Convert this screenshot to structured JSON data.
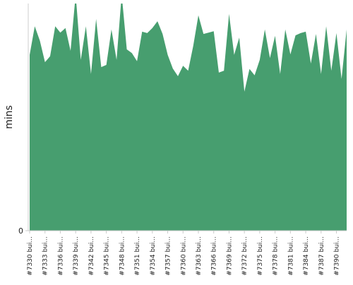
{
  "chart_data": {
    "type": "area",
    "y_label": "mins",
    "color": "#479e6f",
    "categories": [
      "#7330 bui...",
      null,
      null,
      "#7333 bui...",
      null,
      null,
      "#7336 bui...",
      null,
      null,
      "#7339 bui...",
      null,
      null,
      "#7342 bui...",
      null,
      null,
      "#7345 bui...",
      null,
      null,
      "#7348 bui...",
      null,
      null,
      "#7351 bui...",
      null,
      null,
      "#7354 bui...",
      null,
      null,
      "#7357 bui...",
      null,
      null,
      "#7360 bui...",
      null,
      null,
      "#7363 bui...",
      null,
      null,
      "#7366 bui...",
      null,
      null,
      "#7369 bui...",
      null,
      null,
      "#7372 bui...",
      null,
      null,
      "#7375 bui...",
      null,
      null,
      "#7378 bui...",
      null,
      null,
      "#7381 bui...",
      null,
      null,
      "#7384 bui...",
      null,
      null,
      "#7387 bui...",
      null,
      null,
      "#7390 bui...",
      null,
      null
    ],
    "values": [
      38.7,
      45.0,
      41.8,
      37.1,
      38.4,
      45.0,
      43.6,
      44.6,
      39.6,
      52,
      37.6,
      45.0,
      34.5,
      46.6,
      36.0,
      36.5,
      44.3,
      37.6,
      52,
      39.9,
      39.1,
      37.3,
      43.8,
      43.5,
      44.6,
      46.1,
      43.3,
      38.7,
      35.7,
      34.0,
      36.3,
      35.2,
      40.7,
      47.4,
      43.3,
      43.6,
      43.9,
      34.8,
      35.2,
      47.7,
      38.7,
      42.5,
      30.6,
      35.6,
      34.2,
      37.6,
      44.3,
      38.0,
      42.9,
      34.5,
      44.3,
      38.8,
      43.0,
      43.5,
      43.8,
      36.8,
      43.3,
      34.5,
      45.0,
      35.2,
      43.5,
      33.4,
      44.3
    ],
    "ylim": [
      0,
      50
    ],
    "yticks": [
      0
    ]
  }
}
